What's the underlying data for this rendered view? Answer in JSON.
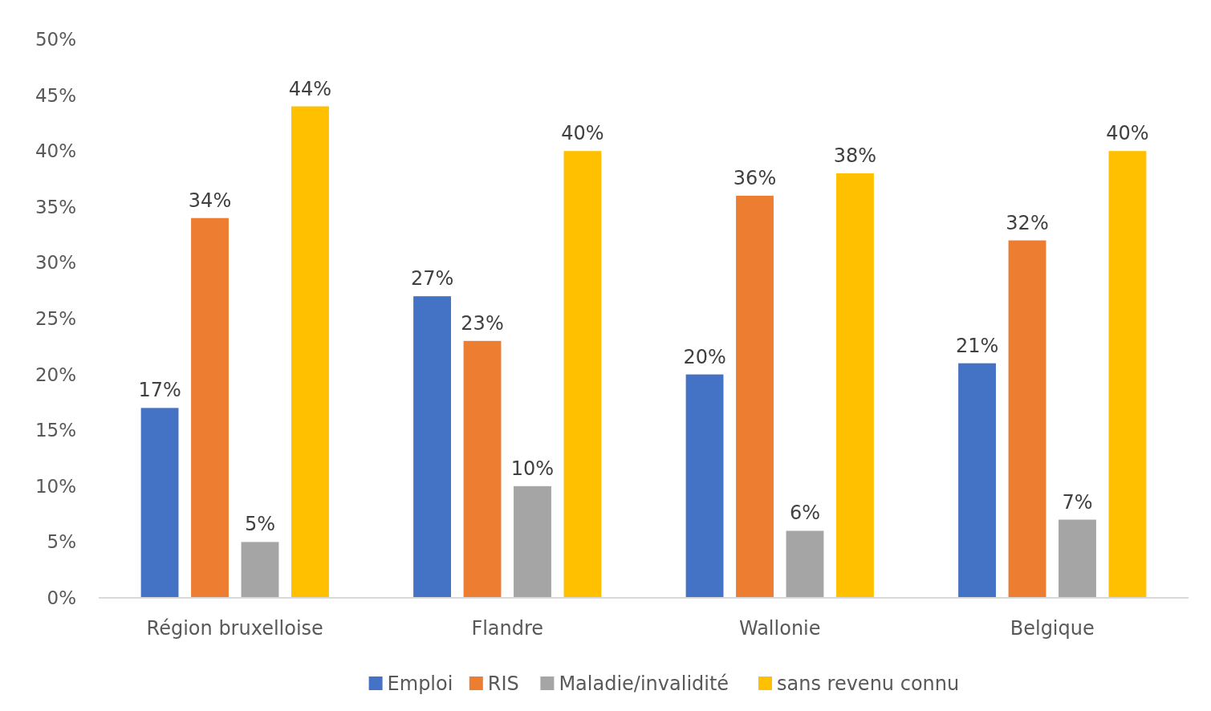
{
  "chart_data": {
    "type": "bar",
    "categories": [
      "Région bruxelloise",
      "Flandre",
      "Wallonie",
      "Belgique"
    ],
    "series": [
      {
        "name": "Emploi",
        "color": "#4472c4",
        "values": [
          17,
          27,
          20,
          21
        ],
        "value_labels": [
          "17%",
          "27%",
          "20%",
          "21%"
        ]
      },
      {
        "name": "RIS",
        "color": "#ed7d31",
        "values": [
          34,
          23,
          36,
          32
        ],
        "value_labels": [
          "34%",
          "23%",
          "36%",
          "32%"
        ]
      },
      {
        "name": "Maladie/invalidité",
        "color": "#a5a5a5",
        "values": [
          5,
          10,
          6,
          7
        ],
        "value_labels": [
          "5%",
          "10%",
          "6%",
          "7%"
        ]
      },
      {
        "name": "sans revenu connu",
        "color": "#ffc000",
        "values": [
          44,
          40,
          38,
          40
        ],
        "value_labels": [
          "44%",
          "40%",
          "38%",
          "40%"
        ]
      }
    ],
    "ylim": [
      0,
      50
    ],
    "yticks": [
      {
        "value": 0,
        "label": "0%"
      },
      {
        "value": 5,
        "label": "5%"
      },
      {
        "value": 10,
        "label": "10%"
      },
      {
        "value": 15,
        "label": "15%"
      },
      {
        "value": 20,
        "label": "20%"
      },
      {
        "value": 25,
        "label": "25%"
      },
      {
        "value": 30,
        "label": "30%"
      },
      {
        "value": 35,
        "label": "35%"
      },
      {
        "value": 40,
        "label": "40%"
      },
      {
        "value": 45,
        "label": "45%"
      },
      {
        "value": 50,
        "label": "50%"
      }
    ],
    "grid": false,
    "legend": "bottom"
  }
}
